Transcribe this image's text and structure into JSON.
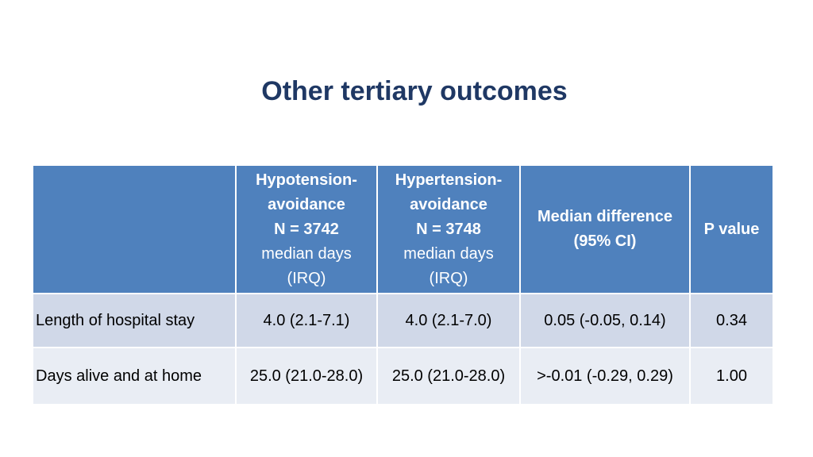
{
  "title": "Other tertiary outcomes",
  "table": {
    "header": {
      "col_label": "",
      "hypotension": {
        "line1": "Hypotension-",
        "line2": "avoidance",
        "line3": "N = 3742",
        "line4": "median days",
        "line5": "(IRQ)"
      },
      "hypertension": {
        "line1": "Hypertension-",
        "line2": "avoidance",
        "line3": "N = 3748",
        "line4": "median days",
        "line5": "(IRQ)"
      },
      "median_diff": {
        "line1": "Median difference",
        "line2": "(95% CI)"
      },
      "p_value": "P value"
    },
    "rows": [
      {
        "label": "Length of hospital stay",
        "hypotension": "4.0 (2.1-7.1)",
        "hypertension": "4.0 (2.1-7.0)",
        "median_diff": "0.05 (-0.05, 0.14)",
        "p_value": "0.34"
      },
      {
        "label": "Days alive and at home",
        "hypotension": "25.0 (21.0-28.0)",
        "hypertension": "25.0 (21.0-28.0)",
        "median_diff": ">-0.01 (-0.29, 0.29)",
        "p_value": "1.00"
      }
    ]
  },
  "colors": {
    "title": "#1f3864",
    "header_bg": "#4f81bd",
    "row_odd_bg": "#d0d8e8",
    "row_even_bg": "#e9edf4"
  }
}
